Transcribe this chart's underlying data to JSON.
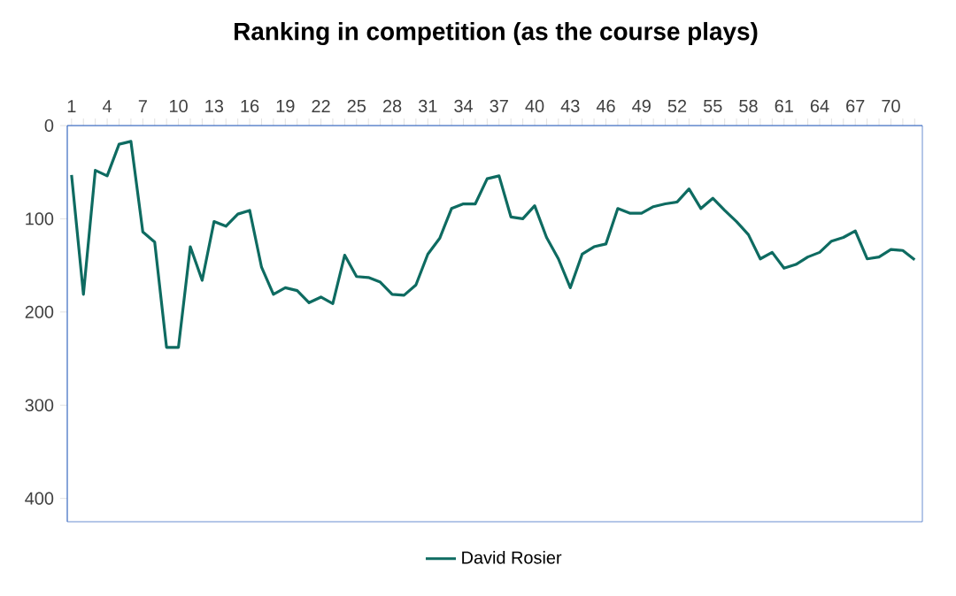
{
  "chart_data": {
    "type": "line",
    "title": "Ranking in competition (as the course plays)",
    "categories": [
      "1",
      null,
      null,
      "4",
      null,
      null,
      "7",
      null,
      null,
      "10",
      null,
      null,
      "13",
      null,
      null,
      "16",
      null,
      null,
      "19",
      null,
      null,
      "22",
      null,
      null,
      "25",
      null,
      null,
      "28",
      null,
      null,
      "31",
      null,
      null,
      "34",
      null,
      null,
      "37",
      null,
      null,
      "40",
      null,
      null,
      "43",
      null,
      null,
      "46",
      null,
      null,
      "49",
      null,
      null,
      "52",
      null,
      null,
      "55",
      null,
      null,
      "58",
      null,
      null,
      "61",
      null,
      null,
      "64",
      null,
      null,
      "67",
      null,
      null,
      "70",
      null,
      null
    ],
    "series": [
      {
        "name": "David Rosier",
        "color": "#0e6b61",
        "values": [
          53,
          181,
          48,
          54,
          20,
          17,
          114,
          125,
          238,
          238,
          130,
          166,
          103,
          108,
          95,
          91,
          152,
          181,
          174,
          177,
          190,
          184,
          191,
          139,
          162,
          163,
          168,
          181,
          182,
          171,
          138,
          121,
          89,
          84,
          84,
          57,
          54,
          98,
          100,
          86,
          120,
          143,
          174,
          138,
          130,
          127,
          89,
          94,
          94,
          87,
          84,
          82,
          68,
          89,
          78,
          91,
          103,
          117,
          143,
          136,
          153,
          149,
          141,
          136,
          124,
          120,
          113,
          143,
          141,
          133,
          134,
          144
        ]
      }
    ],
    "ylim": [
      425,
      0
    ],
    "yticks": [
      0,
      100,
      200,
      300,
      400
    ],
    "grid": false,
    "legend": "bottom",
    "marker": "none",
    "line_style": "solid"
  }
}
